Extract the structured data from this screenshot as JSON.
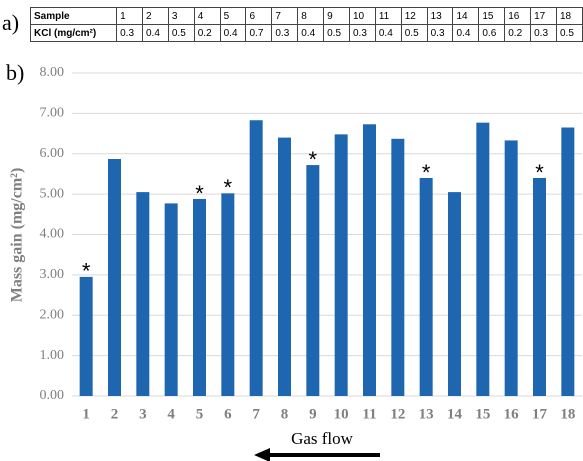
{
  "table": {
    "label": "a)",
    "rows": [
      [
        "Sample",
        "1",
        "2",
        "3",
        "4",
        "5",
        "6",
        "7",
        "8",
        "9",
        "10",
        "11",
        "12",
        "13",
        "14",
        "15",
        "16",
        "17",
        "18"
      ],
      [
        "KCl (mg/cm²)",
        0.3,
        0.4,
        0.5,
        0.2,
        0.4,
        0.7,
        0.3,
        0.4,
        0.5,
        0.3,
        0.4,
        0.5,
        0.3,
        0.4,
        0.6,
        0.2,
        0.3,
        0.5
      ]
    ]
  },
  "chart_data": {
    "type": "bar",
    "panel_label": "b)",
    "y_label": "Mass gain (mg/cm²)",
    "x_label": "Gas flow",
    "categories": [
      "1",
      "2",
      "3",
      "4",
      "5",
      "6",
      "7",
      "8",
      "9",
      "10",
      "11",
      "12",
      "13",
      "14",
      "15",
      "16",
      "17",
      "18"
    ],
    "values": [
      2.95,
      5.87,
      5.05,
      4.77,
      4.88,
      5.02,
      6.83,
      6.4,
      5.72,
      6.48,
      6.73,
      6.37,
      5.4,
      5.05,
      6.77,
      6.33,
      5.4,
      6.65
    ],
    "annotations": [
      "*",
      null,
      null,
      null,
      "*",
      "*",
      null,
      null,
      "*",
      null,
      null,
      null,
      "*",
      null,
      null,
      null,
      "*",
      null
    ],
    "color": "#1f66b0",
    "ylim": [
      0,
      8
    ],
    "yticks": [
      {
        "value": 0,
        "label": "0.00"
      },
      {
        "value": 1,
        "label": "1.00"
      },
      {
        "value": 2,
        "label": "2.00"
      },
      {
        "value": 3,
        "label": "3.00"
      },
      {
        "value": 4,
        "label": "4.00"
      },
      {
        "value": 5,
        "label": "5.00"
      },
      {
        "value": 6,
        "label": "6.00"
      },
      {
        "value": 7,
        "label": "7.00"
      },
      {
        "value": 8,
        "label": "8.00"
      }
    ],
    "grid": true
  }
}
